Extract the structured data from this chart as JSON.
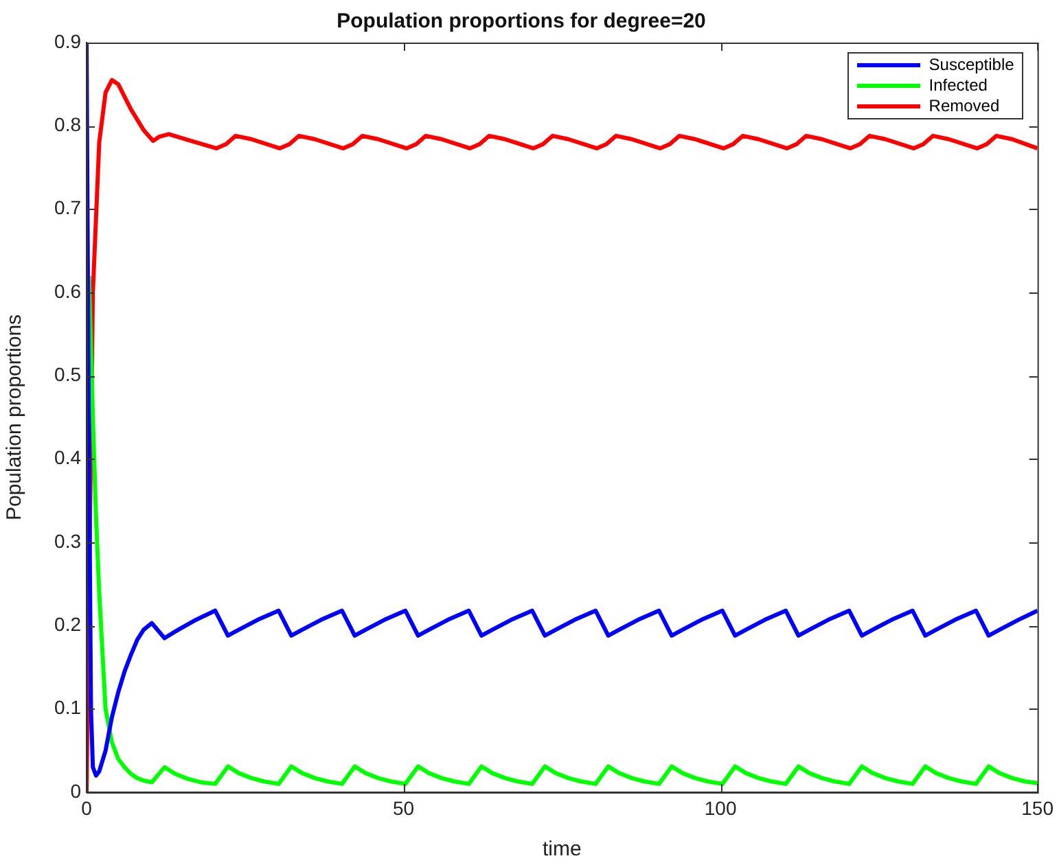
{
  "chart_data": {
    "type": "line",
    "title": "Population proportions for degree=20",
    "xlabel": "time",
    "ylabel": "Population proportions",
    "xlim": [
      0,
      150
    ],
    "xticks": [
      0,
      50,
      100,
      150
    ],
    "ylim": [
      0,
      0.9
    ],
    "yticks": [
      0,
      0.1,
      0.2,
      0.3,
      0.4,
      0.5,
      0.6,
      0.7,
      0.8,
      0.9
    ],
    "grid": false,
    "legend": "top right",
    "series": [
      {
        "name": "Susceptible",
        "color": "#0000ff",
        "x": [
          0,
          0.3,
          0.7,
          1,
          1.5,
          2,
          3,
          4,
          5,
          6,
          7,
          8,
          9,
          10.3,
          12.3,
          14,
          17,
          20.3,
          22.3,
          24,
          27,
          30.3,
          32.3,
          34,
          37,
          40.3,
          42.3,
          44,
          47,
          50.3,
          52.3,
          54,
          57,
          60.3,
          62.3,
          64,
          67,
          70.3,
          72.3,
          74,
          77,
          80.3,
          82.3,
          84,
          87,
          90.3,
          92.3,
          94,
          97,
          100.3,
          102.3,
          104,
          107,
          110.3,
          112.3,
          114,
          117,
          120.3,
          122.3,
          124,
          127,
          130.3,
          132.3,
          134,
          137,
          140.3,
          142.3,
          144,
          147,
          150
        ],
        "values": [
          0.9,
          0.5,
          0.1,
          0.03,
          0.02,
          0.025,
          0.05,
          0.09,
          0.12,
          0.145,
          0.165,
          0.183,
          0.195,
          0.203,
          0.185,
          0.193,
          0.206,
          0.218,
          0.188,
          0.195,
          0.207,
          0.218,
          0.188,
          0.195,
          0.207,
          0.218,
          0.188,
          0.195,
          0.207,
          0.218,
          0.188,
          0.195,
          0.207,
          0.218,
          0.188,
          0.195,
          0.207,
          0.218,
          0.188,
          0.195,
          0.207,
          0.218,
          0.188,
          0.195,
          0.207,
          0.218,
          0.188,
          0.195,
          0.207,
          0.218,
          0.188,
          0.195,
          0.207,
          0.218,
          0.188,
          0.195,
          0.207,
          0.218,
          0.188,
          0.195,
          0.207,
          0.218,
          0.188,
          0.195,
          0.207,
          0.218,
          0.188,
          0.195,
          0.207,
          0.218
        ]
      },
      {
        "name": "Infected",
        "color": "#00ff00",
        "x": [
          0.4,
          1,
          1.5,
          2,
          3,
          4,
          5,
          6,
          7,
          8,
          9,
          10.3,
          12.3,
          14,
          16,
          18,
          20.3,
          22.3,
          24,
          26,
          28,
          30.3,
          32.3,
          34,
          36,
          38,
          40.3,
          42.3,
          44,
          46,
          48,
          50.3,
          52.3,
          54,
          56,
          58,
          60.3,
          62.3,
          64,
          66,
          68,
          70.3,
          72.3,
          74,
          76,
          78,
          80.3,
          82.3,
          84,
          86,
          88,
          90.3,
          92.3,
          94,
          96,
          98,
          100.3,
          102.3,
          104,
          106,
          108,
          110.3,
          112.3,
          114,
          116,
          118,
          120.3,
          122.3,
          124,
          126,
          128,
          130.3,
          132.3,
          134,
          136,
          138,
          140.3,
          142.3,
          144,
          146,
          148,
          150
        ],
        "values": [
          0.62,
          0.45,
          0.33,
          0.24,
          0.1,
          0.06,
          0.04,
          0.03,
          0.022,
          0.017,
          0.014,
          0.012,
          0.03,
          0.022,
          0.016,
          0.012,
          0.01,
          0.031,
          0.023,
          0.017,
          0.013,
          0.01,
          0.031,
          0.023,
          0.017,
          0.013,
          0.01,
          0.031,
          0.023,
          0.017,
          0.013,
          0.01,
          0.031,
          0.023,
          0.017,
          0.013,
          0.01,
          0.031,
          0.023,
          0.017,
          0.013,
          0.01,
          0.031,
          0.023,
          0.017,
          0.013,
          0.01,
          0.031,
          0.023,
          0.017,
          0.013,
          0.01,
          0.031,
          0.023,
          0.017,
          0.013,
          0.01,
          0.031,
          0.023,
          0.017,
          0.013,
          0.01,
          0.031,
          0.023,
          0.017,
          0.013,
          0.01,
          0.031,
          0.023,
          0.017,
          0.013,
          0.01,
          0.031,
          0.023,
          0.017,
          0.013,
          0.01,
          0.031,
          0.023,
          0.017,
          0.013,
          0.011
        ]
      },
      {
        "name": "Removed",
        "color": "#ff0000",
        "x": [
          0,
          0.5,
          1,
          2,
          3,
          4,
          5,
          7,
          9,
          10.5,
          11.5,
          13,
          16,
          20.5,
          22,
          23.5,
          26,
          30.5,
          32,
          33.5,
          36,
          40.5,
          42,
          43.5,
          46,
          50.5,
          52,
          53.5,
          56,
          60.5,
          62,
          63.5,
          66,
          70.5,
          72,
          73.5,
          76,
          80.5,
          82,
          83.5,
          86,
          90.5,
          92,
          93.5,
          96,
          100.5,
          102,
          103.5,
          106,
          110.5,
          112,
          113.5,
          116,
          120.5,
          122,
          123.5,
          126,
          130.5,
          132,
          133.5,
          136,
          140.5,
          142,
          143.5,
          146,
          150
        ],
        "values": [
          0,
          0.3,
          0.6,
          0.78,
          0.84,
          0.855,
          0.85,
          0.82,
          0.795,
          0.782,
          0.787,
          0.79,
          0.783,
          0.773,
          0.778,
          0.788,
          0.784,
          0.773,
          0.778,
          0.788,
          0.784,
          0.773,
          0.778,
          0.788,
          0.784,
          0.773,
          0.778,
          0.788,
          0.784,
          0.773,
          0.778,
          0.788,
          0.784,
          0.773,
          0.778,
          0.788,
          0.784,
          0.773,
          0.778,
          0.788,
          0.784,
          0.773,
          0.778,
          0.788,
          0.784,
          0.773,
          0.778,
          0.788,
          0.784,
          0.773,
          0.778,
          0.788,
          0.784,
          0.773,
          0.778,
          0.788,
          0.784,
          0.773,
          0.778,
          0.788,
          0.784,
          0.773,
          0.778,
          0.788,
          0.784,
          0.773
        ]
      }
    ]
  }
}
